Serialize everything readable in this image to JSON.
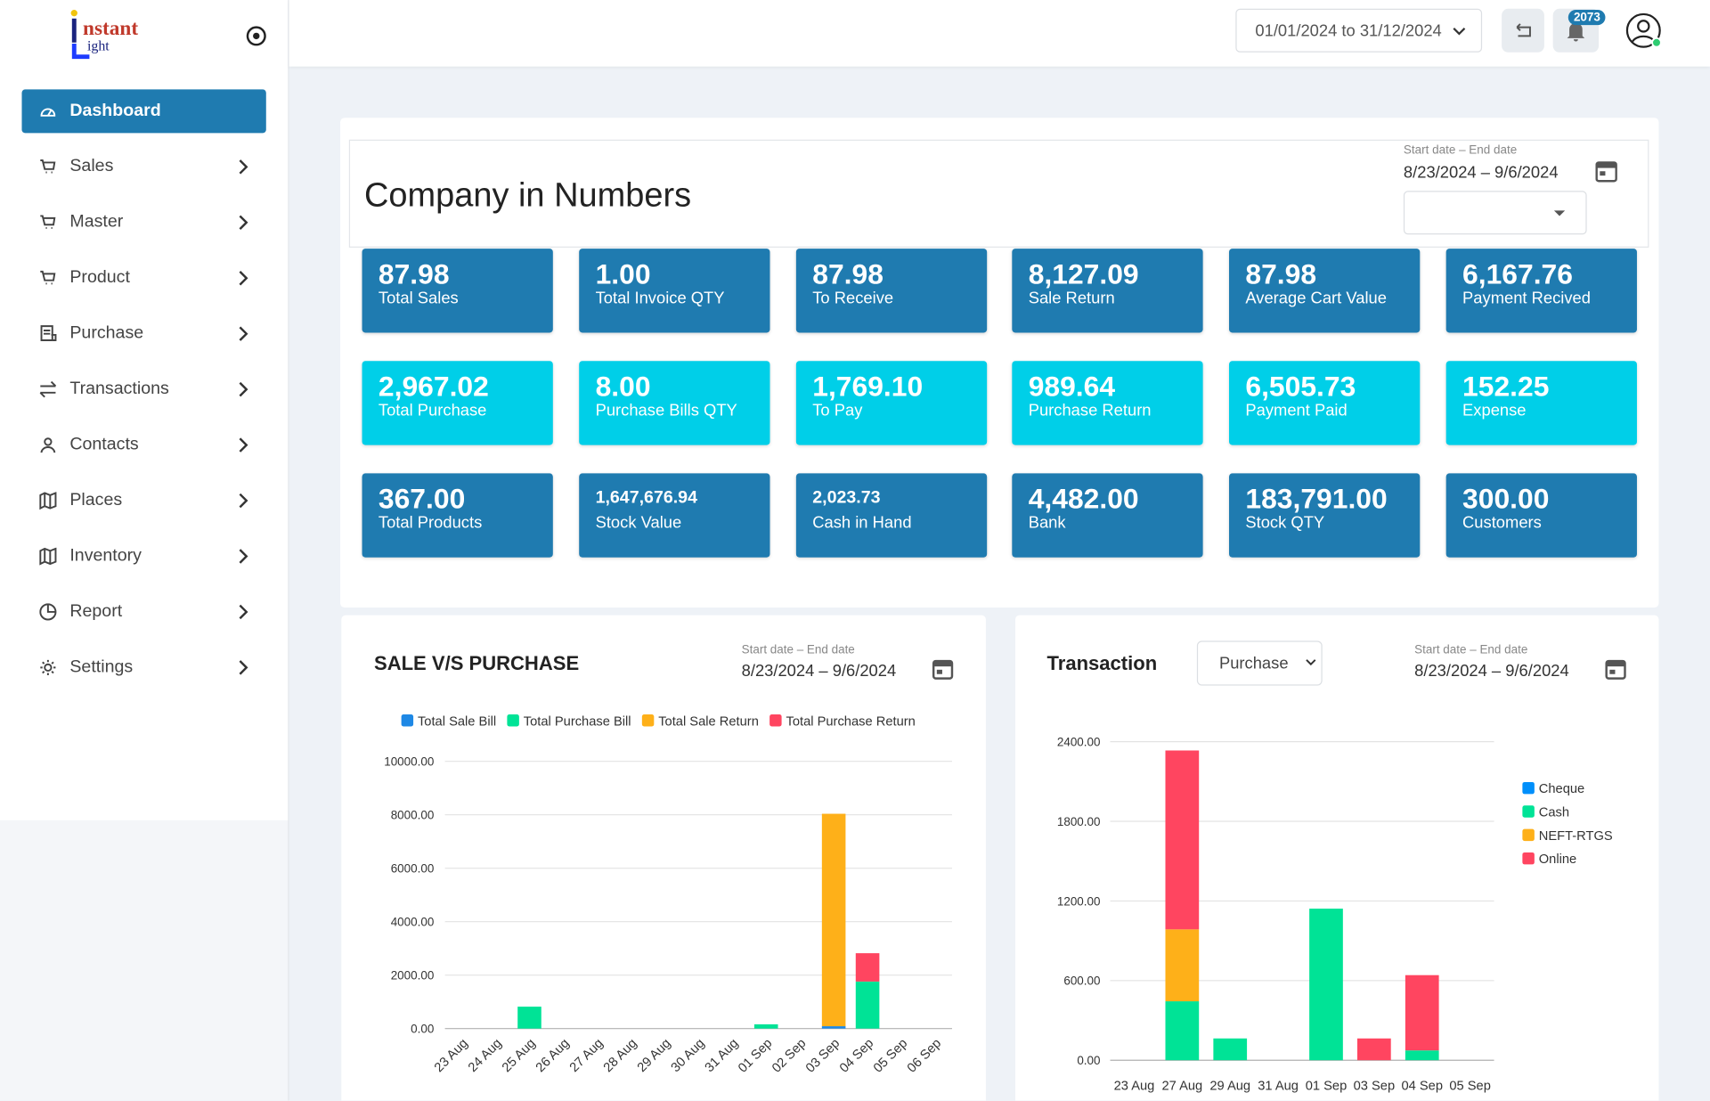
{
  "sidebar": {
    "logo": [
      "nstant",
      "ight"
    ],
    "menu": [
      "Dashboard",
      "Sales",
      "Master",
      "Product",
      "Purchase",
      "Transactions",
      "Contacts",
      "Places",
      "Inventory",
      "Report",
      "Settings"
    ]
  },
  "header": {
    "date_range": "01/01/2024 to 31/12/2024",
    "notifications": "2073"
  },
  "summary": {
    "title": "Company in Numbers",
    "date_label": "Start date – End date",
    "date_range": "8/23/2024 – 9/6/2024",
    "cards": [
      {
        "value": "87.98",
        "label": "Total Sales"
      },
      {
        "value": "1.00",
        "label": "Total Invoice QTY"
      },
      {
        "value": "87.98",
        "label": "To Receive"
      },
      {
        "value": "8,127.09",
        "label": "Sale Return"
      },
      {
        "value": "87.98",
        "label": "Average Cart Value"
      },
      {
        "value": "6,167.76",
        "label": "Payment Recived"
      },
      {
        "value": "2,967.02",
        "label": "Total Purchase"
      },
      {
        "value": "8.00",
        "label": "Purchase Bills QTY"
      },
      {
        "value": "1,769.10",
        "label": "To Pay"
      },
      {
        "value": "989.64",
        "label": "Purchase Return"
      },
      {
        "value": "6,505.73",
        "label": "Payment Paid"
      },
      {
        "value": "152.25",
        "label": "Expense"
      },
      {
        "value": "367.00",
        "label": "Total Products"
      },
      {
        "value": "1,647,676.94",
        "label": "Stock Value"
      },
      {
        "value": "2,023.73",
        "label": "Cash in Hand"
      },
      {
        "value": "4,482.00",
        "label": "Bank"
      },
      {
        "value": "183,791.00",
        "label": "Stock QTY"
      },
      {
        "value": "300.00",
        "label": "Customers"
      }
    ]
  },
  "chart_data": [
    {
      "type": "bar",
      "stacked": true,
      "title": "SALE V/S PURCHASE",
      "date_label": "Start date – End date",
      "date_range": "8/23/2024 – 9/6/2024",
      "legend": "top",
      "grid": true,
      "categories": [
        "23 Aug",
        "24 Aug",
        "25 Aug",
        "26 Aug",
        "27 Aug",
        "28 Aug",
        "29 Aug",
        "30 Aug",
        "31 Aug",
        "01 Sep",
        "02 Sep",
        "03 Sep",
        "04 Sep",
        "05 Sep",
        "06 Sep"
      ],
      "series": [
        {
          "name": "Total Sale Bill",
          "color": "#1e88e5",
          "values": [
            0,
            0,
            0,
            0,
            0,
            0,
            0,
            0,
            0,
            0,
            0,
            88,
            0,
            0,
            0
          ]
        },
        {
          "name": "Total Purchase Bill",
          "color": "#00e396",
          "values": [
            0,
            0,
            820,
            0,
            0,
            0,
            0,
            0,
            0,
            160,
            0,
            0,
            1760,
            0,
            0
          ]
        },
        {
          "name": "Total Sale Return",
          "color": "#feb019",
          "values": [
            0,
            0,
            0,
            0,
            0,
            0,
            0,
            0,
            0,
            0,
            0,
            7950,
            0,
            0,
            0
          ]
        },
        {
          "name": "Total Purchase Return",
          "color": "#ff4560",
          "values": [
            0,
            0,
            0,
            0,
            0,
            0,
            0,
            0,
            0,
            0,
            0,
            0,
            1060,
            0,
            0
          ]
        }
      ],
      "ylim": [
        0,
        10000
      ],
      "yticks": [
        {
          "value": 0,
          "label": "0.00"
        },
        {
          "value": 2000,
          "label": "2000.00"
        },
        {
          "value": 4000,
          "label": "4000.00"
        },
        {
          "value": 6000,
          "label": "6000.00"
        },
        {
          "value": 8000,
          "label": "8000.00"
        },
        {
          "value": 10000,
          "label": "10000.00"
        }
      ]
    },
    {
      "type": "bar",
      "stacked": true,
      "title": "Transaction",
      "filter": "Purchase",
      "date_label": "Start date – End date",
      "date_range": "8/23/2024 – 9/6/2024",
      "legend": "right",
      "grid": true,
      "categories": [
        "23 Aug",
        "27 Aug",
        "29 Aug",
        "31 Aug",
        "01 Sep",
        "03 Sep",
        "04 Sep",
        "05 Sep"
      ],
      "series": [
        {
          "name": "Cheque",
          "color": "#008ffb",
          "values": [
            0,
            0,
            0,
            0,
            0,
            0,
            0,
            0
          ]
        },
        {
          "name": "Cash",
          "color": "#00e396",
          "values": [
            0,
            444,
            164,
            0,
            1142,
            0,
            74,
            0
          ]
        },
        {
          "name": "NEFT-RTGS",
          "color": "#feb019",
          "values": [
            0,
            542,
            0,
            0,
            0,
            0,
            0,
            0
          ]
        },
        {
          "name": "Online",
          "color": "#ff4560",
          "values": [
            0,
            1348,
            0,
            0,
            0,
            164,
            567,
            0
          ]
        }
      ],
      "ylim": [
        0,
        2400
      ],
      "yticks": [
        {
          "value": 0,
          "label": "0.00"
        },
        {
          "value": 600,
          "label": "600.00"
        },
        {
          "value": 1200,
          "label": "1200.00"
        },
        {
          "value": 1800,
          "label": "1800.00"
        },
        {
          "value": 2400,
          "label": "2400.00"
        }
      ]
    }
  ]
}
